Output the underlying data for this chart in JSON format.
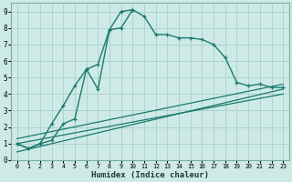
{
  "xlabel": "Humidex (Indice chaleur)",
  "bg_color": "#ceeae6",
  "grid_color": "#aacfcc",
  "line_color": "#1a7a6e",
  "xlim": [
    -0.5,
    23.5
  ],
  "ylim": [
    0,
    9.5
  ],
  "xticks": [
    0,
    1,
    2,
    3,
    4,
    5,
    6,
    7,
    8,
    9,
    10,
    11,
    12,
    13,
    14,
    15,
    16,
    17,
    18,
    19,
    20,
    21,
    22,
    23
  ],
  "yticks": [
    0,
    1,
    2,
    3,
    4,
    5,
    6,
    7,
    8,
    9
  ],
  "series1_x": [
    0,
    1,
    2,
    3,
    4,
    5,
    6,
    7,
    8,
    9,
    10,
    11,
    12,
    13,
    14,
    15,
    16,
    17,
    18,
    19,
    20,
    21,
    22,
    23
  ],
  "series1_y": [
    1.0,
    0.7,
    1.0,
    1.2,
    2.2,
    2.5,
    5.5,
    5.8,
    7.9,
    9.0,
    9.1,
    8.7,
    7.6,
    7.6,
    7.4,
    7.4,
    7.3,
    7.0,
    6.2,
    4.7,
    4.5,
    4.6,
    4.4,
    4.4
  ],
  "series2_x": [
    0,
    1,
    2,
    3,
    4,
    5,
    6,
    7,
    8,
    9,
    10
  ],
  "series2_y": [
    1.0,
    0.7,
    1.0,
    2.2,
    3.3,
    4.5,
    5.5,
    4.3,
    7.9,
    8.0,
    9.1
  ],
  "series3_x": [
    0,
    23
  ],
  "series3_y": [
    0.5,
    4.3
  ],
  "series4_x": [
    0,
    23
  ],
  "series4_y": [
    1.0,
    4.0
  ],
  "series5_x": [
    0,
    23
  ],
  "series5_y": [
    1.3,
    4.6
  ]
}
